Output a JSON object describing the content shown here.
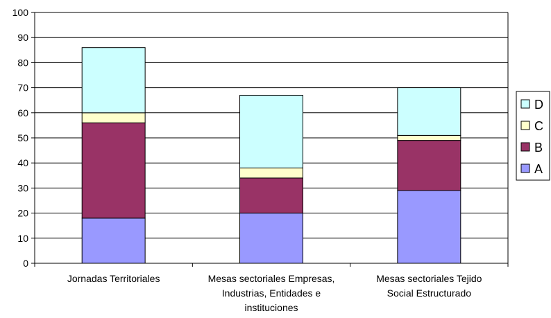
{
  "chart_data": {
    "type": "bar",
    "stacked": true,
    "title": "",
    "xlabel": "",
    "ylabel": "",
    "ylim": [
      0,
      100
    ],
    "yticks": [
      0,
      10,
      20,
      30,
      40,
      50,
      60,
      70,
      80,
      90,
      100
    ],
    "grid": true,
    "legend_position": "right",
    "categories": [
      [
        "Jornadas Territoriales"
      ],
      [
        "Mesas sectoriales Empresas,",
        "Industrias, Entidades e",
        "instituciones"
      ],
      [
        "Mesas sectoriales Tejido",
        "Social Estructurado"
      ]
    ],
    "series": [
      {
        "name": "A",
        "color": "#9999ff",
        "values": [
          18,
          20,
          29
        ]
      },
      {
        "name": "B",
        "color": "#993366",
        "values": [
          38,
          14,
          20
        ]
      },
      {
        "name": "C",
        "color": "#ffffcc",
        "values": [
          4,
          4,
          2
        ]
      },
      {
        "name": "D",
        "color": "#ccffff",
        "values": [
          26,
          29,
          19
        ]
      }
    ]
  }
}
